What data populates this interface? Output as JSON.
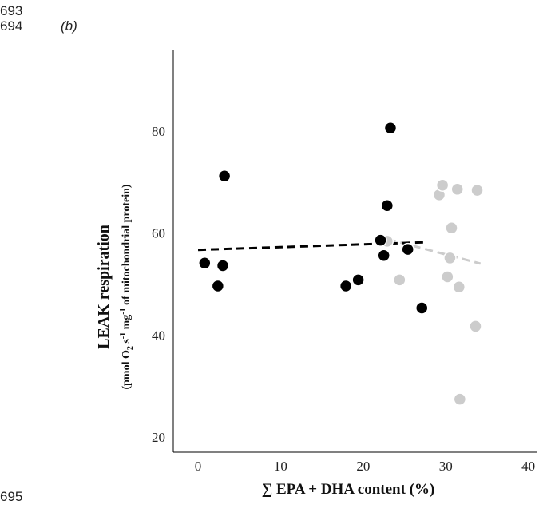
{
  "line_numbers": {
    "first": "693",
    "second": "694",
    "third": "695"
  },
  "panel_label": "(b)",
  "chart_data": {
    "type": "scatter",
    "xlabel": "∑ EPA + DHA content (%)",
    "ylabel": {
      "main": "LEAK respiration",
      "unit_prefix": "(pmol O",
      "unit_o2_sub": "2",
      "unit_s": " s",
      "unit_s_sup": "-1",
      "unit_mg": " mg",
      "unit_mg_sup": "-1",
      "unit_rest": " of mitochondrial protein)"
    },
    "xlim": [
      -3,
      41
    ],
    "ylim": [
      17,
      96
    ],
    "x_ticks": [
      0,
      10,
      20,
      30,
      40
    ],
    "y_ticks": [
      20,
      40,
      60,
      80
    ],
    "grid": false,
    "series": [
      {
        "color": "#000000",
        "points": [
          {
            "x": 0.8,
            "y": 54.1
          },
          {
            "x": 2.4,
            "y": 49.6
          },
          {
            "x": 3.0,
            "y": 53.6
          },
          {
            "x": 3.2,
            "y": 71.2
          },
          {
            "x": 17.9,
            "y": 49.6
          },
          {
            "x": 19.4,
            "y": 50.8
          },
          {
            "x": 22.1,
            "y": 58.6
          },
          {
            "x": 22.5,
            "y": 55.6
          },
          {
            "x": 22.9,
            "y": 65.4
          },
          {
            "x": 23.3,
            "y": 80.6
          },
          {
            "x": 25.4,
            "y": 56.8
          },
          {
            "x": 27.1,
            "y": 45.3
          }
        ],
        "trend": {
          "x": [
            0,
            27.5
          ],
          "y": [
            56.7,
            58.2
          ],
          "color": "#000000"
        }
      },
      {
        "color": "#cccccc",
        "points": [
          {
            "x": 22.9,
            "y": 58.4
          },
          {
            "x": 24.4,
            "y": 50.8
          },
          {
            "x": 29.2,
            "y": 67.5
          },
          {
            "x": 29.6,
            "y": 69.4
          },
          {
            "x": 30.2,
            "y": 51.4
          },
          {
            "x": 30.5,
            "y": 55.1
          },
          {
            "x": 30.7,
            "y": 61.0
          },
          {
            "x": 31.4,
            "y": 68.6
          },
          {
            "x": 31.6,
            "y": 49.4
          },
          {
            "x": 31.7,
            "y": 27.4
          },
          {
            "x": 33.6,
            "y": 41.7
          },
          {
            "x": 33.8,
            "y": 68.4
          }
        ],
        "trend": {
          "x": [
            23,
            34.2
          ],
          "y": [
            58.8,
            54.0
          ],
          "color": "#cccccc"
        }
      }
    ]
  }
}
